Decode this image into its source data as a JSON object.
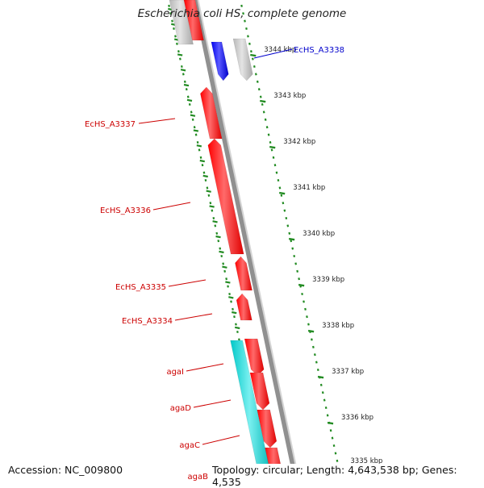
{
  "title": "Escherichia coli HS, complete genome",
  "footer": {
    "accession": "Accession: NC_009800",
    "topology": "Topology: circular; Length: 4,643,538 bp; Genes: 4,535"
  },
  "colors": {
    "backbone": "#909090",
    "backbone_highlight": "#d4d4d4",
    "ruler": "#228b22",
    "red_gene": "#ff0000",
    "red_gene_light": "#ff7a7a",
    "blue_gene": "#0000ff",
    "cyan_gene": "#00cccc",
    "grey_gene": "#c8c8c8",
    "red_label": "#cc0000",
    "blue_label": "#0000cc"
  },
  "ruler_ticks": [
    {
      "label": "3344 kbp"
    },
    {
      "label": "3343 kbp"
    },
    {
      "label": "3342 kbp"
    },
    {
      "label": "3341 kbp"
    },
    {
      "label": "3340 kbp"
    },
    {
      "label": "3339 kbp"
    },
    {
      "label": "3338 kbp"
    },
    {
      "label": "3337 kbp"
    },
    {
      "label": "3336 kbp"
    },
    {
      "label": "3335 kbp"
    }
  ],
  "genes": [
    {
      "id": "EcHS_A3338",
      "label": "EcHS_A3338",
      "color": "blue"
    },
    {
      "id": "EcHS_A3337",
      "label": "EcHS_A3337",
      "color": "red"
    },
    {
      "id": "EcHS_A3336",
      "label": "EcHS_A3336",
      "color": "red"
    },
    {
      "id": "EcHS_A3335",
      "label": "EcHS_A3335",
      "color": "red"
    },
    {
      "id": "EcHS_A3334",
      "label": "EcHS_A3334",
      "color": "red"
    },
    {
      "id": "agaI",
      "label": "agaI",
      "color": "red"
    },
    {
      "id": "agaD",
      "label": "agaD",
      "color": "red"
    },
    {
      "id": "agaC",
      "label": "agaC",
      "color": "red"
    },
    {
      "id": "agaB",
      "label": "agaB",
      "color": "red"
    }
  ]
}
